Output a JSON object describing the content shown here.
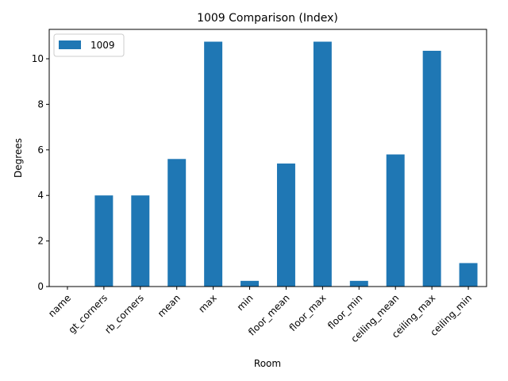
{
  "chart_data": {
    "type": "bar",
    "title": "1009 Comparison (Index)",
    "xlabel": "Room",
    "ylabel": "Degrees",
    "categories": [
      "name",
      "gt_corners",
      "rb_corners",
      "mean",
      "max",
      "min",
      "floor_mean",
      "floor_max",
      "floor_min",
      "ceiling_mean",
      "ceiling_max",
      "ceiling_min"
    ],
    "series": [
      {
        "name": "1009",
        "color": "#1f77b4",
        "values": [
          0,
          4,
          4,
          5.6,
          10.75,
          0.25,
          5.4,
          10.75,
          0.25,
          5.8,
          10.35,
          1.03
        ]
      }
    ],
    "ylim": [
      0,
      11.29
    ],
    "yticks": [
      0,
      2,
      4,
      6,
      8,
      10
    ],
    "ytick_labels": [
      "0",
      "2",
      "4",
      "6",
      "8",
      "10"
    ],
    "grid": false,
    "legend": "upper-left"
  }
}
